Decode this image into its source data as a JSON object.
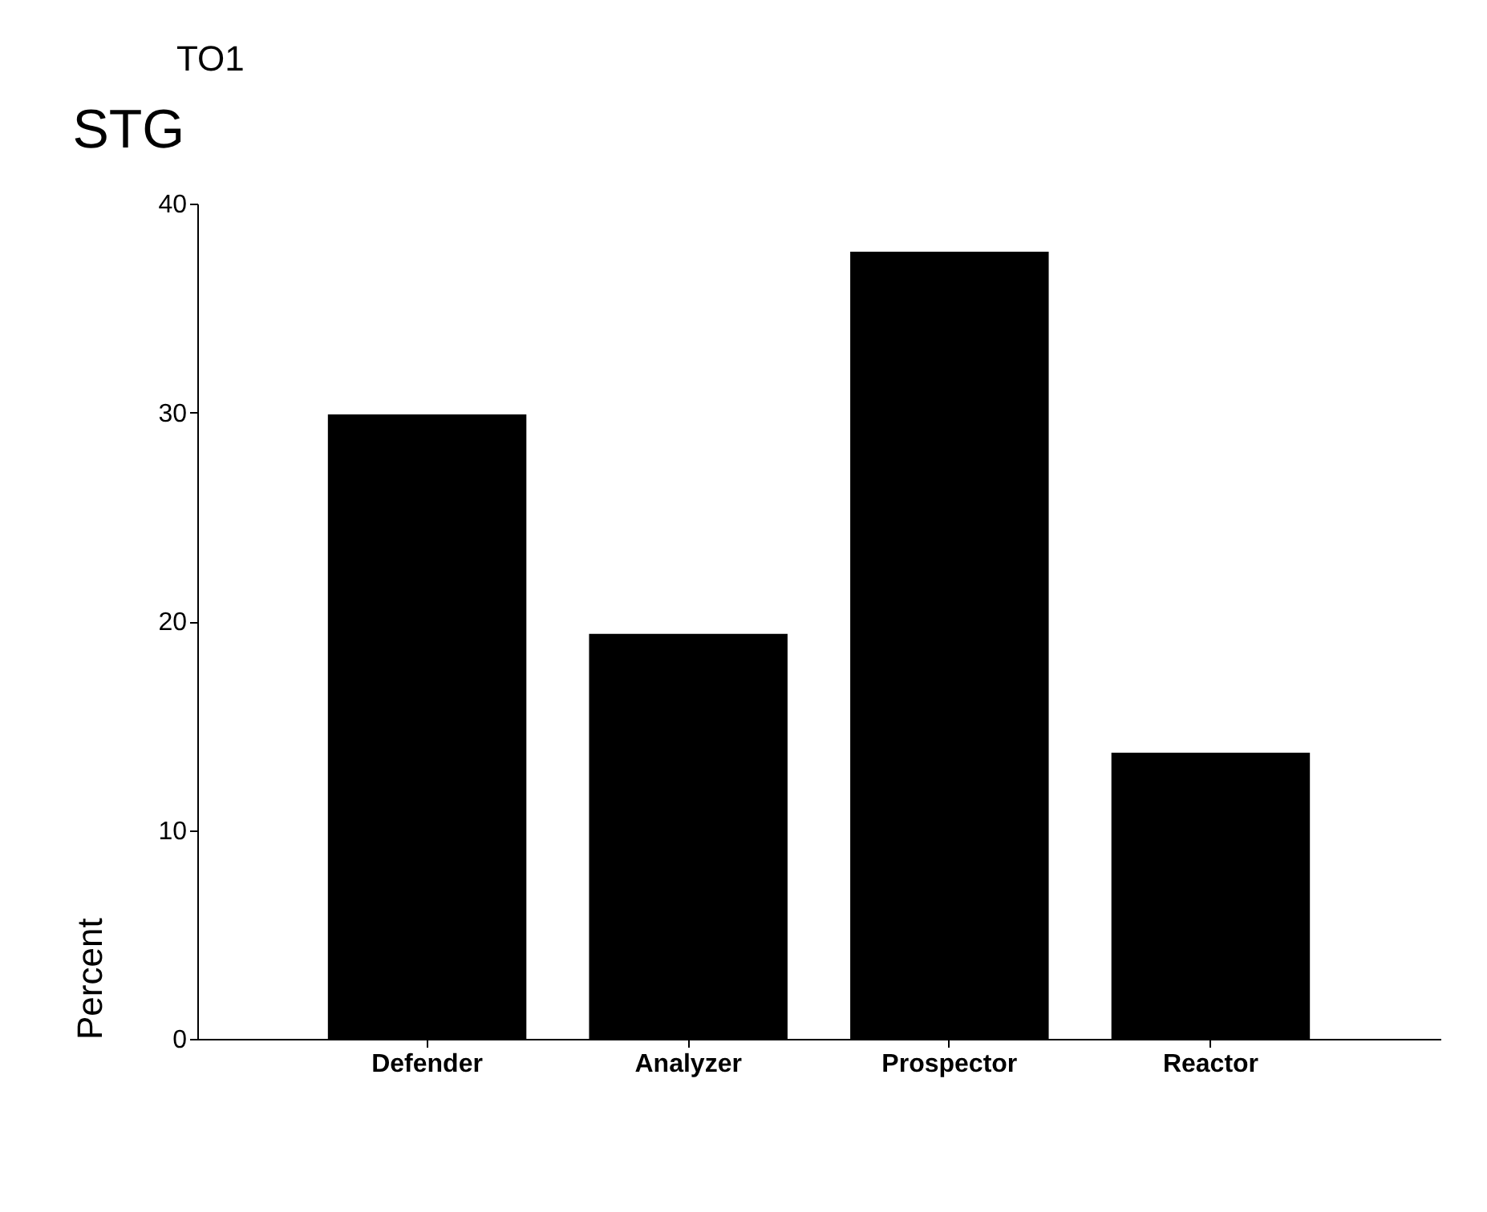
{
  "chart_data": {
    "type": "bar",
    "title": "STG",
    "annotations": [
      "TO1"
    ],
    "ylabel": "Percent",
    "categories": [
      "Defender",
      "Analyzer",
      "Prospector",
      "Reactor"
    ],
    "values": [
      29.9,
      19.4,
      37.7,
      13.7
    ],
    "color": "#000000",
    "ylim": [
      0,
      40
    ],
    "yticks": [
      0,
      10,
      20,
      30,
      40
    ],
    "grid": false
  }
}
